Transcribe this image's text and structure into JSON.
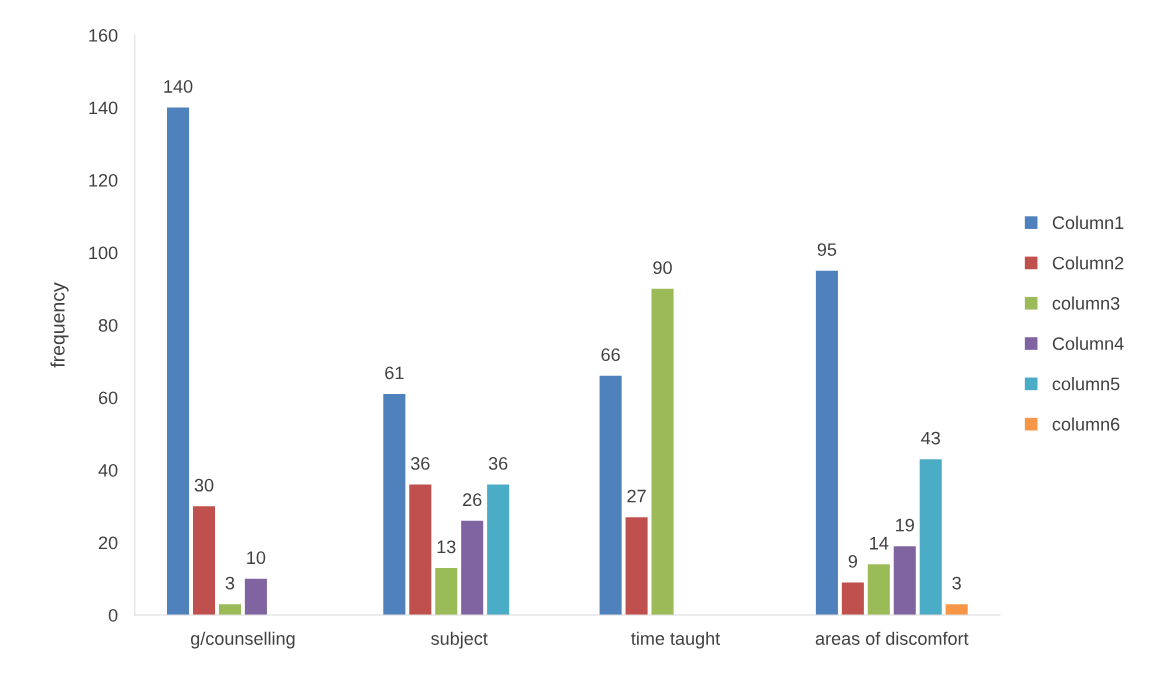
{
  "chart_data": {
    "type": "bar",
    "ylabel": "frequency",
    "categories": [
      "g/counselling",
      "subject",
      "time taught",
      "areas of discomfort"
    ],
    "series": [
      {
        "name": "Column1",
        "color": "#4f81bd",
        "values": [
          140,
          61,
          66,
          95
        ]
      },
      {
        "name": "Column2",
        "color": "#c0504d",
        "values": [
          30,
          36,
          27,
          9
        ]
      },
      {
        "name": "column3",
        "color": "#9bbb59",
        "values": [
          3,
          13,
          90,
          14
        ]
      },
      {
        "name": "Column4",
        "color": "#8064a2",
        "values": [
          10,
          26,
          null,
          19
        ]
      },
      {
        "name": "column5",
        "color": "#4bacc6",
        "values": [
          null,
          36,
          null,
          43
        ]
      },
      {
        "name": "column6",
        "color": "#f79646",
        "values": [
          null,
          null,
          null,
          3
        ]
      }
    ],
    "ylim": [
      0,
      160
    ],
    "yticks": [
      0,
      20,
      40,
      60,
      80,
      100,
      120,
      140,
      160
    ],
    "data_labels": true,
    "legend": "right",
    "grid": false
  }
}
